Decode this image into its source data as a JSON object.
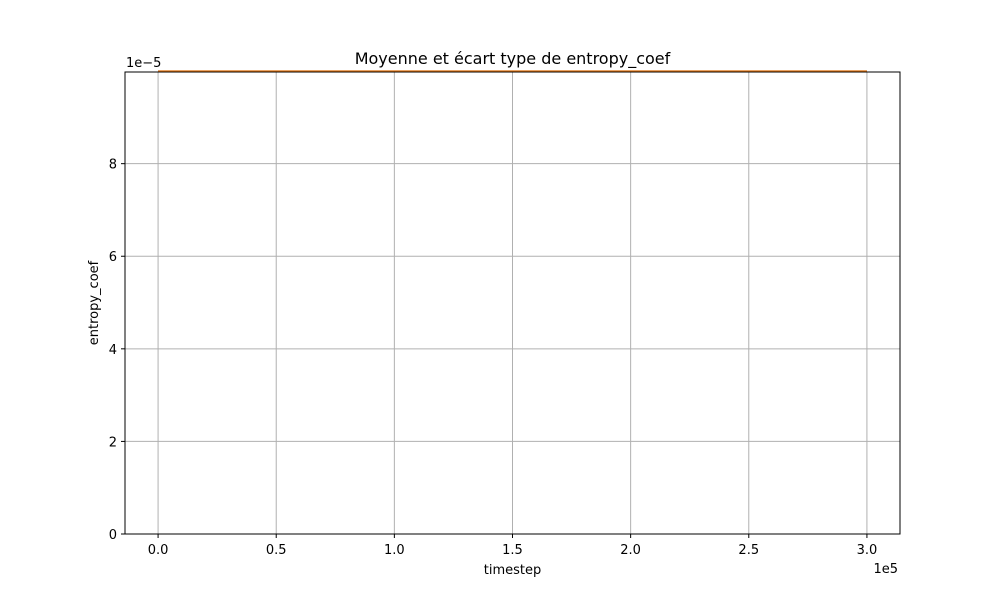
{
  "chart_data": {
    "type": "line",
    "title": "Moyenne et écart type de entropy_coef",
    "xlabel": "timestep",
    "ylabel": "entropy_coef",
    "x_offset_text": "1e5",
    "y_offset_text": "1e−5",
    "xlim": [
      -14000,
      314000
    ],
    "ylim": [
      0,
      9.98e-05
    ],
    "x_ticks": [
      0,
      50000,
      100000,
      150000,
      200000,
      250000,
      300000
    ],
    "x_tick_labels": [
      "0.0",
      "0.5",
      "1.0",
      "1.5",
      "2.0",
      "2.5",
      "3.0"
    ],
    "y_ticks": [
      0,
      2e-05,
      4e-05,
      6e-05,
      8e-05
    ],
    "y_tick_labels": [
      "0",
      "2",
      "4",
      "6",
      "8"
    ],
    "grid": true,
    "series": [
      {
        "color": "#1f77b4",
        "x": [
          0,
          300000
        ],
        "y": [
          0.0001,
          0.0001
        ]
      },
      {
        "color": "#ff7f0e",
        "x": [
          0,
          300000
        ],
        "y": [
          0.0001,
          0.0001
        ]
      }
    ]
  }
}
